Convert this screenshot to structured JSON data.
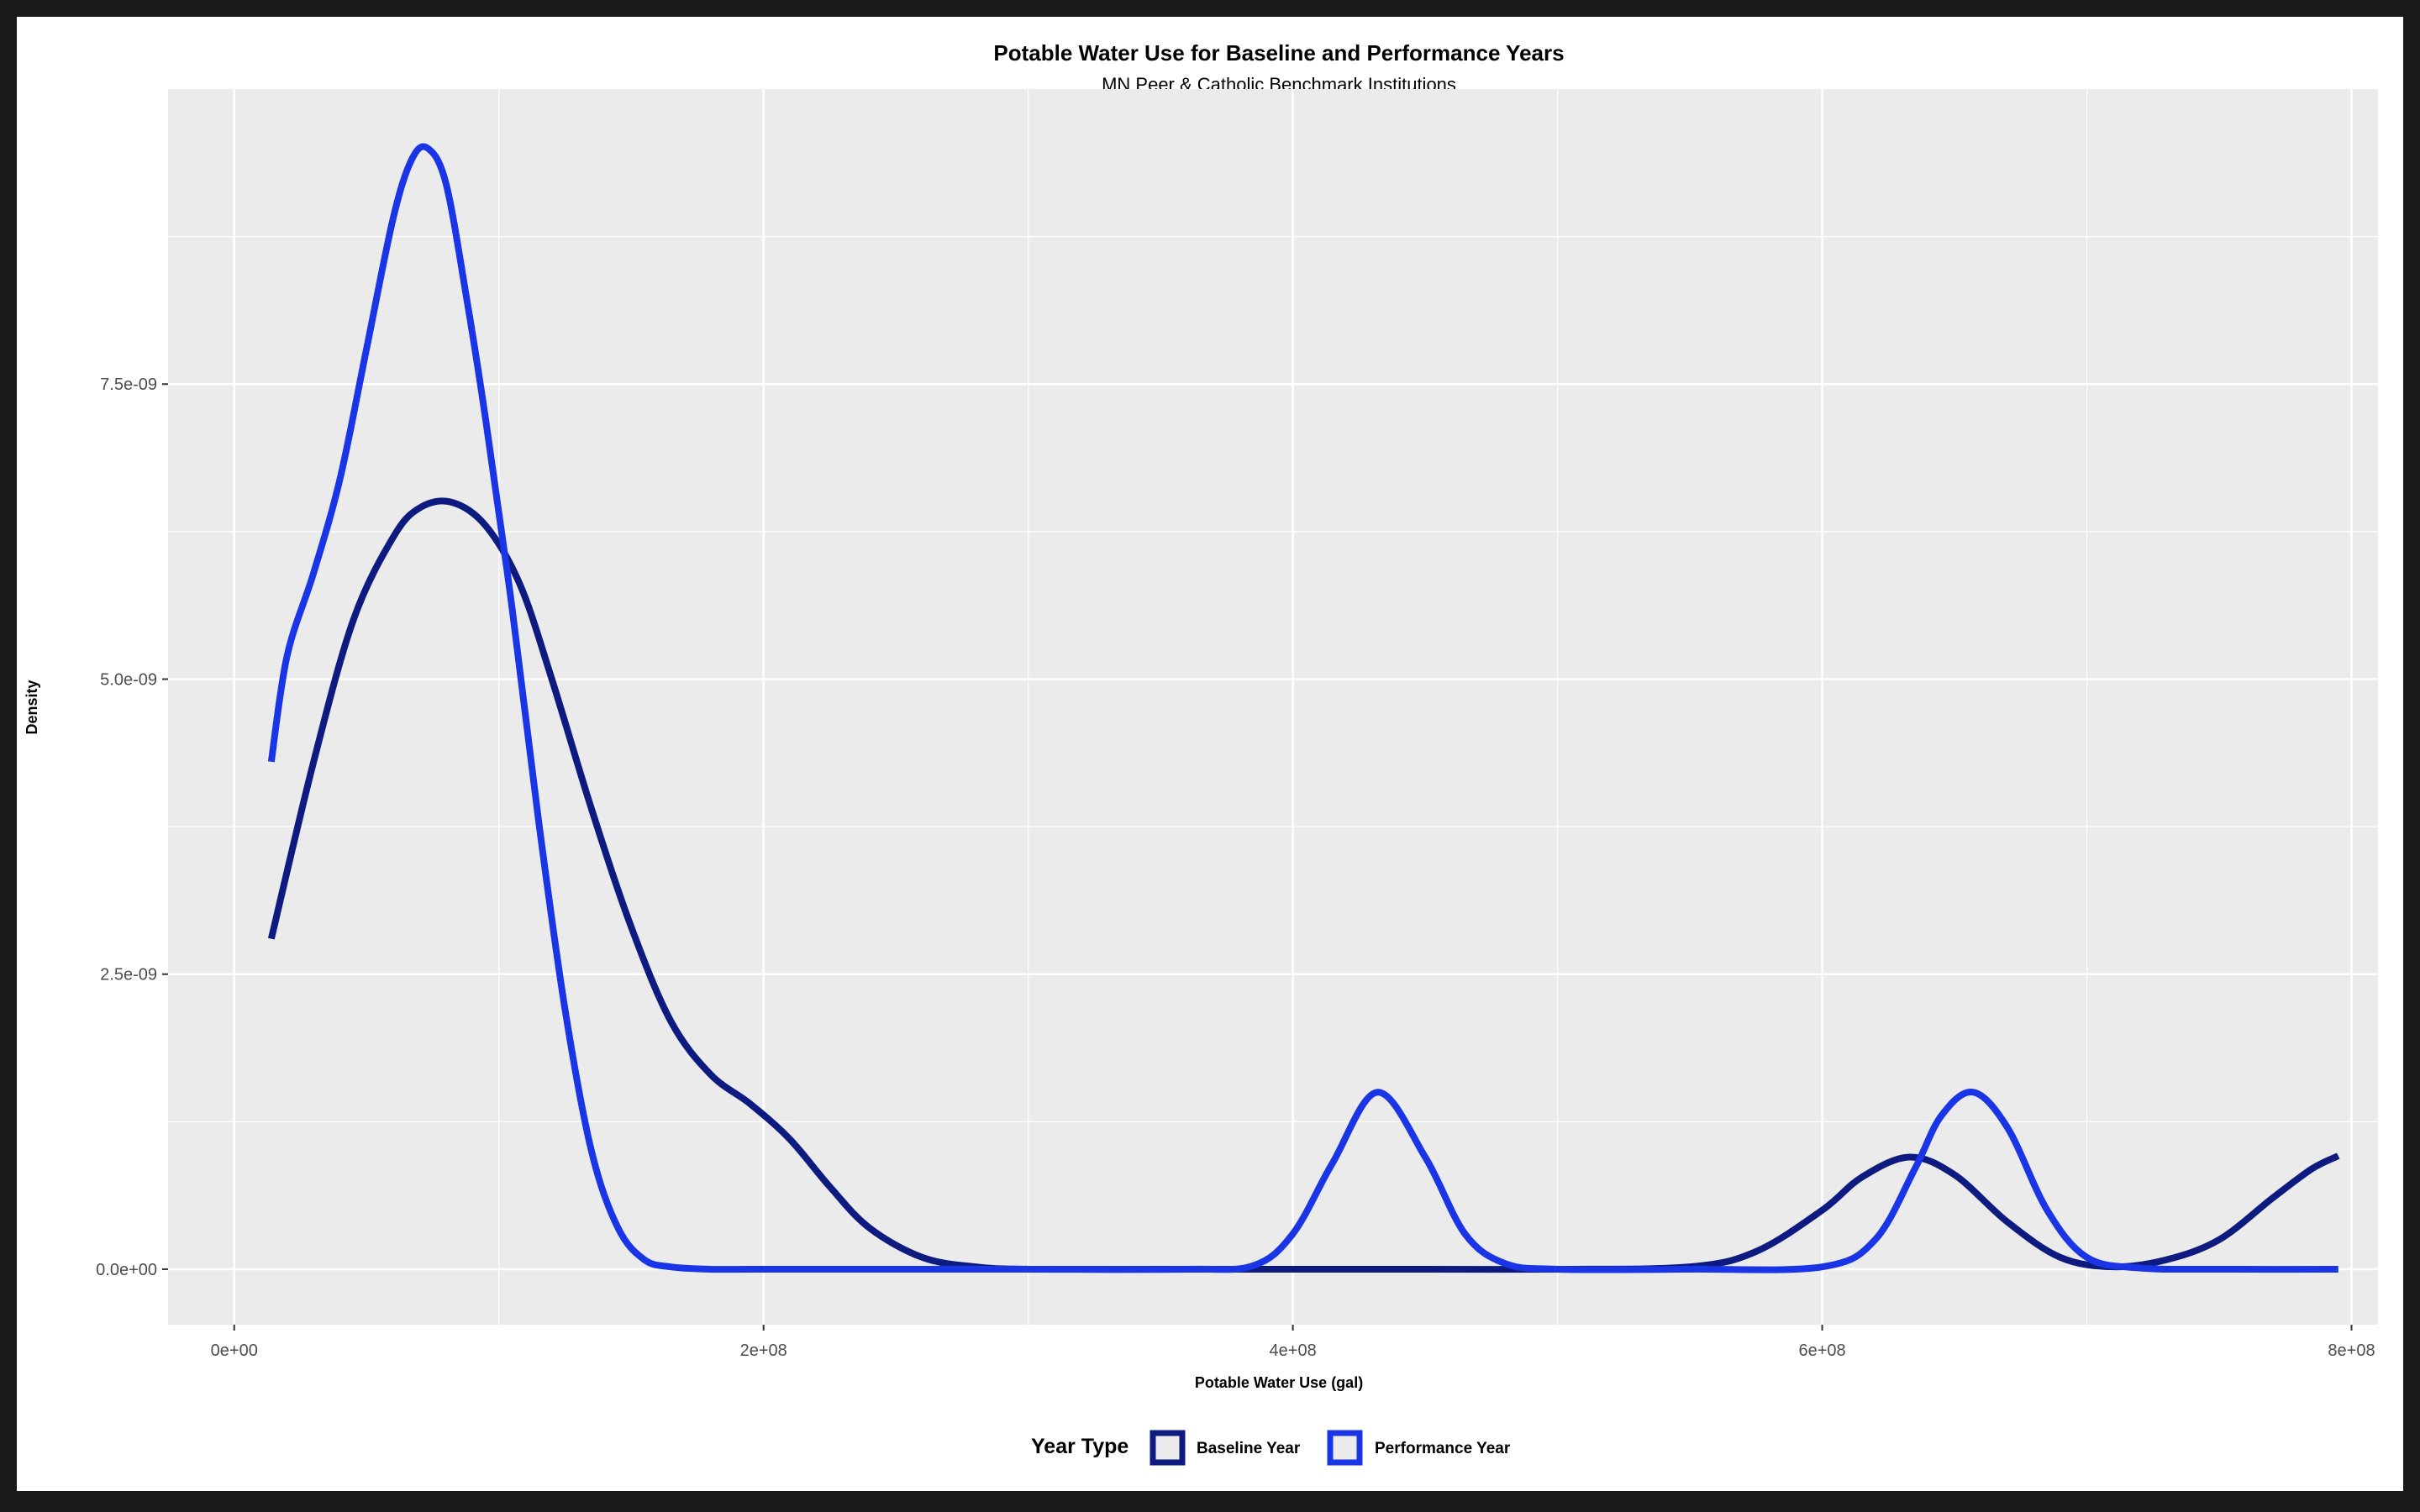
{
  "chart_data": {
    "type": "line",
    "title": "Potable Water Use for Baseline and Performance Years",
    "subtitle": "MN Peer & Catholic Benchmark Institutions",
    "xlabel": "Potable Water Use (gal)",
    "ylabel": "Density",
    "xlim": [
      -25000000,
      810000000
    ],
    "ylim": [
      -4.7e-10,
      1e-08
    ],
    "x_ticks": [
      0,
      200000000,
      400000000,
      600000000,
      800000000
    ],
    "x_tick_labels": [
      "0e+00",
      "2e+08",
      "4e+08",
      "6e+08",
      "8e+08"
    ],
    "y_ticks": [
      0,
      2.5e-09,
      5e-09,
      7.5e-09
    ],
    "y_tick_labels": [
      "0.0e+00",
      "2.5e-09",
      "5.0e-09",
      "7.5e-09"
    ],
    "grid": true,
    "legend": {
      "title": "Year Type",
      "position": "bottom"
    },
    "series": [
      {
        "name": "Baseline Year",
        "color": "#0d1a80",
        "x": [
          14000000,
          30000000,
          45000000,
          60000000,
          70000000,
          82000000,
          95000000,
          108000000,
          120000000,
          135000000,
          150000000,
          165000000,
          180000000,
          195000000,
          210000000,
          225000000,
          240000000,
          260000000,
          280000000,
          300000000,
          350000000,
          400000000,
          450000000,
          500000000,
          550000000,
          575000000,
          600000000,
          615000000,
          633000000,
          650000000,
          670000000,
          690000000,
          710000000,
          730000000,
          750000000,
          770000000,
          785000000,
          795000000
        ],
        "y": [
          2.8e-09,
          4.3e-09,
          5.5e-09,
          6.2e-09,
          6.45e-09,
          6.5e-09,
          6.3e-09,
          5.8e-09,
          5e-09,
          3.9e-09,
          2.9e-09,
          2.1e-09,
          1.65e-09,
          1.4e-09,
          1.1e-09,
          7e-10,
          3.5e-10,
          1e-10,
          2e-11,
          0.0,
          0.0,
          0.0,
          0.0,
          0.0,
          2e-11,
          1.5e-10,
          5e-10,
          7.8e-10,
          9.5e-10,
          8e-10,
          4e-10,
          1e-10,
          2e-11,
          8e-11,
          2.5e-10,
          6e-10,
          8.5e-10,
          9.6e-10
        ]
      },
      {
        "name": "Performance Year",
        "color": "#1a35e6",
        "x": [
          14000000,
          20000000,
          30000000,
          40000000,
          50000000,
          60000000,
          67000000,
          73000000,
          80000000,
          88000000,
          95000000,
          105000000,
          115000000,
          125000000,
          135000000,
          145000000,
          155000000,
          165000000,
          180000000,
          200000000,
          250000000,
          300000000,
          360000000,
          385000000,
          400000000,
          415000000,
          432000000,
          450000000,
          465000000,
          480000000,
          500000000,
          550000000,
          600000000,
          620000000,
          635000000,
          645000000,
          657000000,
          670000000,
          685000000,
          700000000,
          720000000,
          750000000,
          795000000
        ],
        "y": [
          4.3e-09,
          5.2e-09,
          5.9e-09,
          6.7e-09,
          7.8e-09,
          8.9e-09,
          9.4e-09,
          9.5e-09,
          9.2e-09,
          8.2e-09,
          7.2e-09,
          5.6e-09,
          3.8e-09,
          2.2e-09,
          1e-09,
          3.5e-10,
          8e-11,
          2e-11,
          0.0,
          0.0,
          0.0,
          0.0,
          0.0,
          3e-11,
          3e-10,
          9e-10,
          1.5e-09,
          9.5e-10,
          3e-10,
          5e-11,
          0.0,
          0.0,
          2e-11,
          2.5e-10,
          8.5e-10,
          1.3e-09,
          1.5e-09,
          1.2e-09,
          5e-10,
          1e-10,
          1e-11,
          0.0,
          0.0
        ]
      }
    ]
  }
}
